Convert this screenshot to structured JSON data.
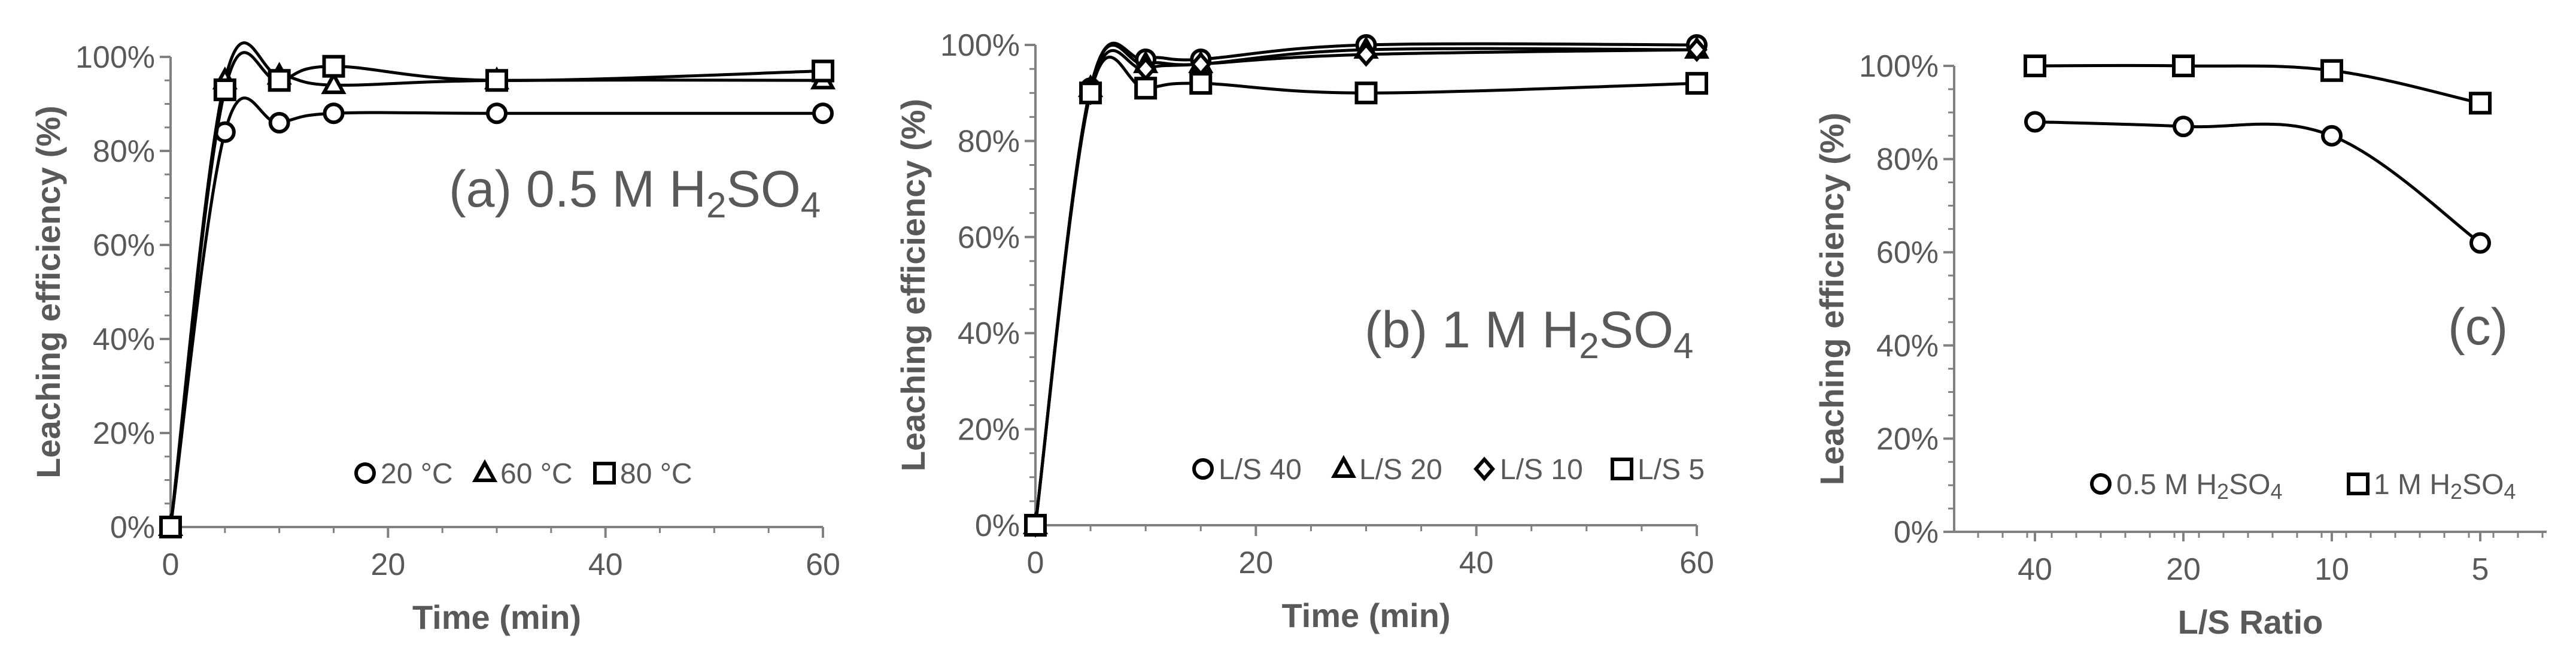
{
  "chart_data": [
    {
      "id": "a",
      "type": "line",
      "annotation": {
        "prefix": "(a) 0.5 M H",
        "sub1": "2",
        "mid": "SO",
        "sub2": "4"
      },
      "xlabel": "Time (min)",
      "ylabel": "Leaching efficiency (%)",
      "xlim": [
        0,
        60
      ],
      "ylim": [
        0,
        100
      ],
      "x_ticks": [
        0,
        20,
        40,
        60
      ],
      "y_ticks": [
        "0%",
        "20%",
        "40%",
        "60%",
        "80%",
        "100%"
      ],
      "legend_position": "bottom-right",
      "series": [
        {
          "name": "20 °C",
          "marker": "circle",
          "x": [
            0,
            5,
            10,
            15,
            30,
            60
          ],
          "y": [
            0,
            84,
            86,
            88,
            88,
            88
          ]
        },
        {
          "name": "60 °C",
          "marker": "triangle",
          "x": [
            0,
            5,
            10,
            15,
            30,
            60
          ],
          "y": [
            0,
            95,
            96,
            94,
            95,
            95
          ]
        },
        {
          "name": "80 °C",
          "marker": "square",
          "x": [
            0,
            5,
            10,
            15,
            30,
            60
          ],
          "y": [
            0,
            93,
            95,
            98,
            95,
            97
          ]
        }
      ]
    },
    {
      "id": "b",
      "type": "line",
      "annotation": {
        "prefix": "(b) 1 M H",
        "sub1": "2",
        "mid": "SO",
        "sub2": "4"
      },
      "xlabel": "Time (min)",
      "ylabel": "Leaching efficiency (%)",
      "xlim": [
        0,
        60
      ],
      "ylim": [
        0,
        100
      ],
      "x_ticks": [
        0,
        20,
        40,
        60
      ],
      "y_ticks": [
        "0%",
        "20%",
        "40%",
        "60%",
        "80%",
        "100%"
      ],
      "legend_position": "bottom-right",
      "series": [
        {
          "name": "L/S 40",
          "marker": "circle",
          "x": [
            0,
            5,
            10,
            15,
            30,
            60
          ],
          "y": [
            0,
            91,
            97,
            97,
            100,
            100
          ]
        },
        {
          "name": "L/S 20",
          "marker": "triangle",
          "x": [
            0,
            5,
            10,
            15,
            30,
            60
          ],
          "y": [
            0,
            91,
            96,
            96,
            99,
            99
          ]
        },
        {
          "name": "L/S 10",
          "marker": "diamond",
          "x": [
            0,
            5,
            10,
            15,
            30,
            60
          ],
          "y": [
            0,
            90,
            95,
            96,
            98,
            99
          ]
        },
        {
          "name": "L/S 5",
          "marker": "square",
          "x": [
            0,
            5,
            10,
            15,
            30,
            60
          ],
          "y": [
            0,
            90,
            91,
            92,
            90,
            92
          ]
        }
      ]
    },
    {
      "id": "c",
      "type": "line",
      "annotation": {
        "prefix": "(c)",
        "sub1": "",
        "mid": "",
        "sub2": ""
      },
      "xlabel": "L/S Ratio",
      "ylabel": "Leaching efficiency (%)",
      "categories": [
        "40",
        "20",
        "10",
        "5"
      ],
      "ylim": [
        0,
        100
      ],
      "y_ticks": [
        "0%",
        "20%",
        "40%",
        "60%",
        "80%",
        "100%"
      ],
      "legend_position": "bottom-right",
      "series": [
        {
          "name": "0.5 M H2SO4",
          "label": {
            "prefix": "0.5 M H",
            "sub1": "2",
            "mid": "SO",
            "sub2": "4"
          },
          "marker": "circle",
          "values": [
            88,
            87,
            85,
            62
          ]
        },
        {
          "name": "1 M H2SO4",
          "label": {
            "prefix": "1 M H",
            "sub1": "2",
            "mid": "SO",
            "sub2": "4"
          },
          "marker": "square",
          "values": [
            100,
            100,
            99,
            92
          ]
        }
      ]
    }
  ],
  "colors": {
    "axis": "#808080",
    "text": "#595959",
    "line": "#000000",
    "marker_fill": "#ffffff"
  }
}
